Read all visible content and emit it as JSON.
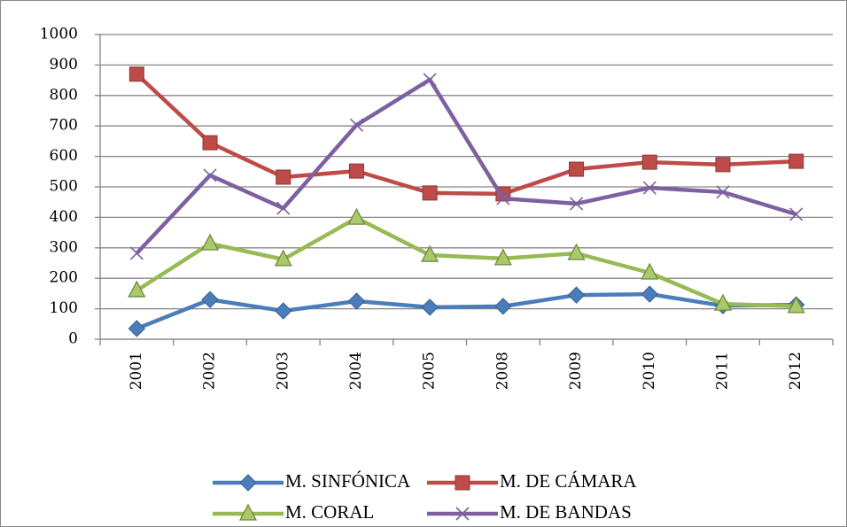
{
  "chart_data": {
    "type": "line",
    "categories": [
      "2001",
      "2002",
      "2003",
      "2004",
      "2005",
      "2008",
      "2009",
      "2010",
      "2011",
      "2012"
    ],
    "series": [
      {
        "name": "M. SINFÓNICA",
        "color": "#4a7ebb",
        "marker": "diamond",
        "values": [
          35,
          130,
          93,
          125,
          105,
          108,
          145,
          148,
          110,
          113
        ]
      },
      {
        "name": "M. DE CÁMARA",
        "color": "#be4b48",
        "marker": "square",
        "values": [
          870,
          645,
          532,
          552,
          480,
          477,
          558,
          581,
          573,
          584
        ]
      },
      {
        "name": "M. CORAL",
        "color": "#98b954",
        "marker": "triangle",
        "values": [
          160,
          314,
          262,
          398,
          276,
          265,
          282,
          218,
          116,
          108
        ]
      },
      {
        "name": "M. DE BANDAS",
        "color": "#7d60a0",
        "marker": "x",
        "values": [
          282,
          538,
          430,
          703,
          852,
          462,
          445,
          497,
          483,
          410
        ]
      }
    ],
    "ylim": [
      0,
      1000
    ],
    "yticks": [
      0,
      100,
      200,
      300,
      400,
      500,
      600,
      700,
      800,
      900,
      1000
    ],
    "grid": true
  }
}
